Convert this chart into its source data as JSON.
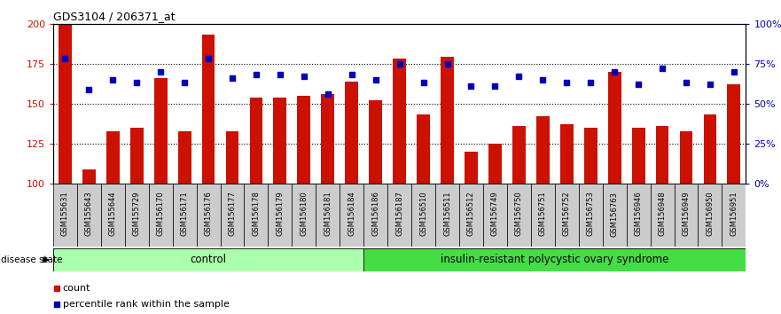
{
  "title": "GDS3104 / 206371_at",
  "samples": [
    "GSM155631",
    "GSM155643",
    "GSM155644",
    "GSM155729",
    "GSM156170",
    "GSM156171",
    "GSM156176",
    "GSM156177",
    "GSM156178",
    "GSM156179",
    "GSM156180",
    "GSM156181",
    "GSM156184",
    "GSM156186",
    "GSM156187",
    "GSM156510",
    "GSM156511",
    "GSM156512",
    "GSM156749",
    "GSM156750",
    "GSM156751",
    "GSM156752",
    "GSM156753",
    "GSM156763",
    "GSM156946",
    "GSM156948",
    "GSM156949",
    "GSM156950",
    "GSM156951"
  ],
  "counts": [
    200,
    109,
    133,
    135,
    166,
    133,
    193,
    133,
    154,
    154,
    155,
    156,
    164,
    152,
    178,
    143,
    179,
    120,
    125,
    136,
    142,
    137,
    135,
    170,
    135,
    136,
    133,
    143,
    162
  ],
  "percentile_raw": [
    178,
    159,
    165,
    163,
    170,
    163,
    178,
    166,
    168,
    168,
    167,
    156,
    168,
    165,
    175,
    163,
    175,
    161,
    161,
    167,
    165,
    163,
    163,
    170,
    162,
    172,
    163,
    162,
    170
  ],
  "control_count": 13,
  "disease_count": 16,
  "bar_color": "#cc1100",
  "dot_color": "#0000bb",
  "ymin": 100,
  "ymax": 200,
  "yticks_left": [
    100,
    125,
    150,
    175,
    200
  ],
  "right_yticks": [
    0,
    25,
    50,
    75,
    100
  ],
  "grid_levels": [
    125,
    150,
    175
  ],
  "control_bg": "#aaffaa",
  "disease_bg": "#44dd44",
  "tick_bg": "#cccccc",
  "bg_color": "#ffffff"
}
